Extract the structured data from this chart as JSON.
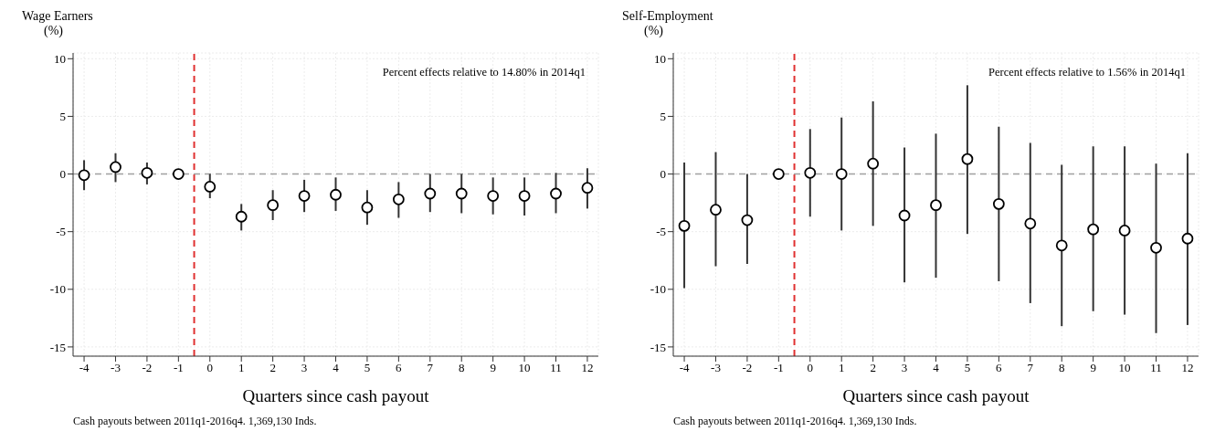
{
  "chart_data": [
    {
      "type": "scatter",
      "title": "Wage Earners",
      "ylabel": "(%)",
      "xlabel": "Quarters since cash payout",
      "annotations": [
        "Percent effects relative to 14.80% in 2014q1",
        "Cash payouts between 2011q1-2016q4. 1,369,130 Inds."
      ],
      "x": [
        -4,
        -3,
        -2,
        -1,
        0,
        1,
        2,
        3,
        4,
        5,
        6,
        7,
        8,
        9,
        10,
        11,
        12
      ],
      "series": [
        {
          "color": "#000000",
          "values": [
            -0.1,
            0.6,
            0.1,
            0,
            -1.1,
            -3.7,
            -2.7,
            -1.9,
            -1.8,
            -2.9,
            -2.2,
            -1.7,
            -1.7,
            -1.9,
            -1.9,
            -1.7,
            -1.2
          ],
          "errors": [
            [
              -1.4,
              1.2
            ],
            [
              -0.7,
              1.8
            ],
            [
              -0.9,
              1.0
            ],
            null,
            [
              -2.1,
              0
            ],
            [
              -4.9,
              -2.6
            ],
            [
              -4.0,
              -1.4
            ],
            [
              -3.3,
              -0.5
            ],
            [
              -3.2,
              -0.3
            ],
            [
              -4.4,
              -1.4
            ],
            [
              -3.8,
              -0.7
            ],
            [
              -3.3,
              0
            ],
            [
              -3.4,
              0
            ],
            [
              -3.5,
              -0.3
            ],
            [
              -3.6,
              -0.3
            ],
            [
              -3.4,
              0.1
            ],
            [
              -3.0,
              0.5
            ]
          ]
        }
      ],
      "xlim": [
        -4.35,
        12.35
      ],
      "xticks": [
        -4,
        -3,
        -2,
        -1,
        0,
        1,
        2,
        3,
        4,
        5,
        6,
        7,
        8,
        9,
        10,
        11,
        12
      ],
      "ylim": [
        -15.8,
        10.5
      ],
      "yticks": [
        -15,
        -10,
        -5,
        0,
        5,
        10
      ],
      "ref_lines": [
        {
          "axis": "x",
          "value": -0.5,
          "color": "#e03030",
          "line_style": "dashed"
        },
        {
          "axis": "y",
          "value": 0,
          "color": "#a0a0a0",
          "line_style": "dashed"
        }
      ],
      "grid": true,
      "marker": "circle"
    },
    {
      "type": "scatter",
      "title": "Self-Employment",
      "ylabel": "(%)",
      "xlabel": "Quarters since cash payout",
      "annotations": [
        "Percent effects relative to 1.56% in 2014q1",
        "Cash payouts between 2011q1-2016q4. 1,369,130 Inds."
      ],
      "x": [
        -4,
        -3,
        -2,
        -1,
        0,
        1,
        2,
        3,
        4,
        5,
        6,
        7,
        8,
        9,
        10,
        11,
        12
      ],
      "series": [
        {
          "color": "#000000",
          "values": [
            -4.5,
            -3.1,
            -4.0,
            0,
            0.1,
            0,
            0.9,
            -3.6,
            -2.7,
            1.3,
            -2.6,
            -4.3,
            -6.2,
            -4.8,
            -4.9,
            -6.4,
            -5.6
          ],
          "errors": [
            [
              -9.9,
              1.0
            ],
            [
              -8.0,
              1.9
            ],
            [
              -7.8,
              0
            ],
            null,
            [
              -3.7,
              3.9
            ],
            [
              -4.9,
              4.9
            ],
            [
              -4.5,
              6.3
            ],
            [
              -9.4,
              2.3
            ],
            [
              -9.0,
              3.5
            ],
            [
              -5.2,
              7.7
            ],
            [
              -9.3,
              4.1
            ],
            [
              -11.2,
              2.7
            ],
            [
              -13.2,
              0.8
            ],
            [
              -11.9,
              2.4
            ],
            [
              -12.2,
              2.4
            ],
            [
              -13.8,
              0.9
            ],
            [
              -13.1,
              1.8
            ]
          ]
        }
      ],
      "xlim": [
        -4.35,
        12.35
      ],
      "xticks": [
        -4,
        -3,
        -2,
        -1,
        0,
        1,
        2,
        3,
        4,
        5,
        6,
        7,
        8,
        9,
        10,
        11,
        12
      ],
      "ylim": [
        -15.8,
        10.5
      ],
      "yticks": [
        -15,
        -10,
        -5,
        0,
        5,
        10
      ],
      "ref_lines": [
        {
          "axis": "x",
          "value": -0.5,
          "color": "#e03030",
          "line_style": "dashed"
        },
        {
          "axis": "y",
          "value": 0,
          "color": "#a0a0a0",
          "line_style": "dashed"
        }
      ],
      "grid": true,
      "marker": "circle"
    }
  ]
}
